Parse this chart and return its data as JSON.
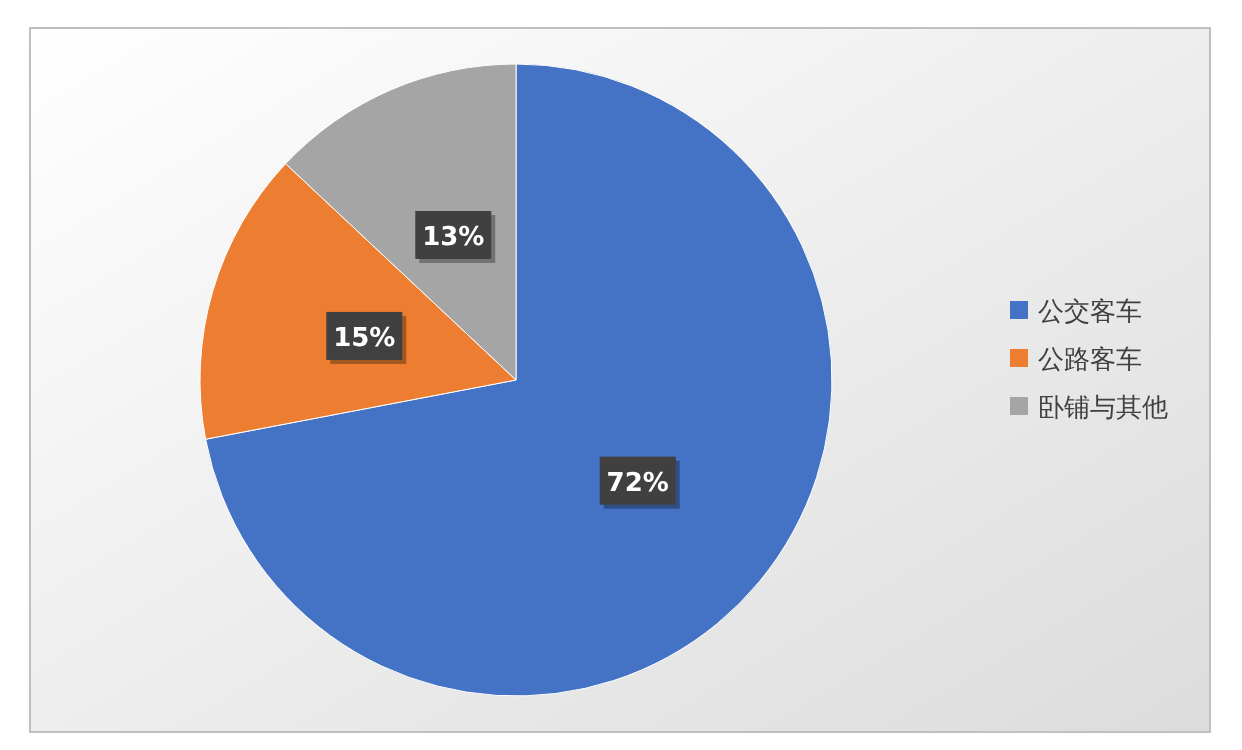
{
  "chart_data": {
    "type": "pie",
    "categories": [
      "公交客车",
      "公路客车",
      "卧铺与其他"
    ],
    "values": [
      72,
      15,
      13
    ],
    "colors": [
      "#4472c4",
      "#ed7d31",
      "#a5a5a5"
    ],
    "value_labels": [
      "72%",
      "15%",
      "13%"
    ],
    "legend": "right"
  }
}
